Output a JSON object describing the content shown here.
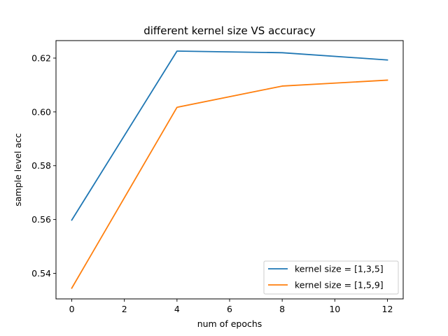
{
  "chart_data": {
    "type": "line",
    "title": "different kernel size VS accuracy",
    "xlabel": "num of epochs",
    "ylabel": "sample level acc",
    "x": [
      0,
      4,
      8,
      12
    ],
    "xlim": [
      -0.6,
      12.6
    ],
    "ylim": [
      0.5305,
      0.6265
    ],
    "xticks": [
      0,
      2,
      4,
      6,
      8,
      10,
      12
    ],
    "yticks": [
      0.54,
      0.56,
      0.58,
      0.6,
      0.62
    ],
    "xtick_labels": [
      "0",
      "2",
      "4",
      "6",
      "8",
      "10",
      "12"
    ],
    "ytick_labels": [
      "0.54",
      "0.56",
      "0.58",
      "0.60",
      "0.62"
    ],
    "grid": false,
    "legend_position": "lower-right",
    "series": [
      {
        "name": "kernel size = [1,3,5]",
        "color": "#1f77b4",
        "values": [
          0.5598,
          0.6226,
          0.622,
          0.6193
        ]
      },
      {
        "name": "kernel size = [1,5,9]",
        "color": "#ff7f0e",
        "values": [
          0.5345,
          0.6017,
          0.6096,
          0.6118
        ]
      }
    ]
  }
}
